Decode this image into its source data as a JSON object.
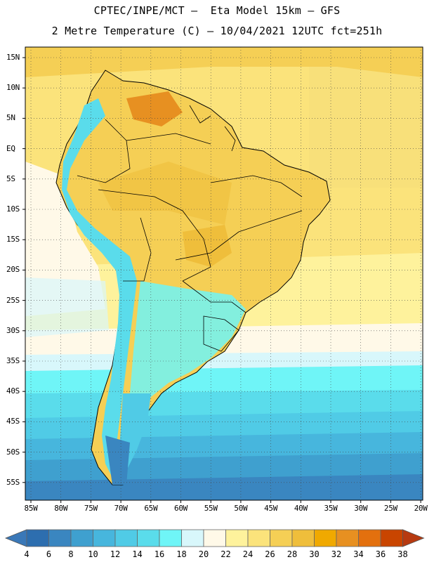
{
  "title": {
    "line1": "CPTEC/INPE/MCT –  Eta Model 15km – GFS",
    "line2": "2 Metre Temperature (C) – 10/04/2021 12UTC fct=251h"
  },
  "map": {
    "region": "South America",
    "lat_labels": [
      "15N",
      "10N",
      "5N",
      "EQ",
      "5S",
      "10S",
      "15S",
      "20S",
      "25S",
      "30S",
      "35S",
      "40S",
      "45S",
      "50S",
      "55S"
    ],
    "lon_labels": [
      "85W",
      "80W",
      "75W",
      "70W",
      "65W",
      "60W",
      "55W",
      "50W",
      "45W",
      "40W",
      "35W",
      "30W",
      "25W",
      "20W"
    ]
  },
  "colorbar": {
    "labels": [
      "4",
      "6",
      "8",
      "10",
      "12",
      "14",
      "16",
      "18",
      "20",
      "22",
      "24",
      "26",
      "28",
      "30",
      "32",
      "34",
      "36",
      "38"
    ],
    "colors": [
      "#2d6eaf",
      "#3a86c0",
      "#3fa0cf",
      "#47b6dd",
      "#50cbe6",
      "#5adceb",
      "#6ff5f7",
      "#d8f7fb",
      "#fff9e8",
      "#fef29c",
      "#fbe37b",
      "#f5cf55",
      "#efbe3b",
      "#f0a900",
      "#e79021",
      "#e3700e",
      "#c94500",
      "#b73a10"
    ],
    "under_color": "#3a78b8",
    "over_color": "#b73a10"
  }
}
